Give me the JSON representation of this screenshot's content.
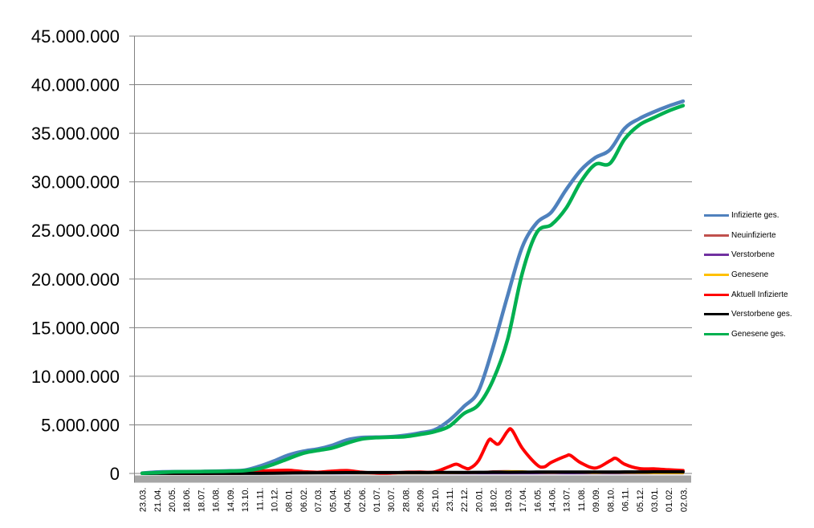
{
  "chart_data": {
    "type": "line",
    "title": "",
    "xlabel": "",
    "ylabel": "",
    "ylim": [
      0,
      45000000
    ],
    "ytick_step": 5000000,
    "ytick_labels": [
      "0",
      "5.000.000",
      "10.000.000",
      "15.000.000",
      "20.000.000",
      "25.000.000",
      "30.000.000",
      "35.000.000",
      "40.000.000",
      "45.000.000"
    ],
    "grid": true,
    "gridline_color": "#808080",
    "axis_color": "#808080",
    "axis_bar_color": "#A6A6A6",
    "legend_position": "right",
    "categories": [
      "23.03.",
      "21.04.",
      "20.05.",
      "18.06.",
      "18.07.",
      "16.08.",
      "14.09.",
      "13.10.",
      "11.11.",
      "10.12.",
      "08.01.",
      "06.02.",
      "07.03.",
      "05.04.",
      "04.05.",
      "02.06.",
      "01.07.",
      "30.07.",
      "28.08.",
      "26.09.",
      "25.10.",
      "23.11.",
      "22.12.",
      "20.01.",
      "18.02.",
      "19.03.",
      "17.04.",
      "16.05.",
      "14.06.",
      "13.07.",
      "11.08.",
      "09.09.",
      "08.10.",
      "06.11.",
      "05.12.",
      "03.01.",
      "01.02.",
      "02.03."
    ],
    "series": [
      {
        "name": "Infizierte ges.",
        "color": "#4F81BD",
        "line_width": 4.5,
        "values": [
          30000,
          145000,
          177000,
          189000,
          201000,
          224000,
          261000,
          334000,
          730000,
          1270000,
          1890000,
          2280000,
          2510000,
          2890000,
          3440000,
          3690000,
          3730000,
          3770000,
          3920000,
          4170000,
          4480000,
          5450000,
          6880000,
          8460000,
          13000000,
          18300000,
          23300000,
          25800000,
          26900000,
          29200000,
          31200000,
          32500000,
          33300000,
          35500000,
          36500000,
          37200000,
          37800000,
          38300000
        ]
      },
      {
        "name": "Neuinfizierte",
        "color": "#C0504D",
        "line_width": 2.5,
        "values": [
          4000,
          2000,
          600,
          400,
          500,
          1200,
          1900,
          5000,
          18000,
          23000,
          25000,
          10000,
          9000,
          18000,
          18000,
          4000,
          800,
          2000,
          9000,
          7500,
          13000,
          45000,
          45000,
          95000,
          220000,
          250000,
          165000,
          60000,
          90000,
          130000,
          60000,
          35000,
          95000,
          45000,
          35000,
          20000,
          15000,
          20000
        ]
      },
      {
        "name": "Verstorbene",
        "color": "#7030A0",
        "line_width": 2.5,
        "values": [
          60,
          220,
          60,
          20,
          10,
          10,
          10,
          30,
          200,
          500,
          900,
          700,
          300,
          200,
          250,
          100,
          70,
          30,
          20,
          60,
          90,
          250,
          450,
          180,
          200,
          250,
          250,
          120,
          100,
          120,
          130,
          100,
          120,
          150,
          180,
          160,
          130,
          120
        ]
      },
      {
        "name": "Genesene",
        "color": "#FFC000",
        "line_width": 2.5,
        "values": [
          500,
          3000,
          1500,
          500,
          450,
          900,
          1500,
          3000,
          12000,
          22000,
          28000,
          18000,
          8000,
          14000,
          22000,
          12000,
          2500,
          1500,
          6500,
          8000,
          10000,
          30000,
          50000,
          60000,
          150000,
          230000,
          230000,
          110000,
          70000,
          110000,
          90000,
          45000,
          75000,
          70000,
          45000,
          28000,
          18000,
          15000
        ]
      },
      {
        "name": "Aktuell Infizierte",
        "color": "#FF0000",
        "line_width": 4,
        "points": [
          [
            0,
            25000
          ],
          [
            1,
            50000
          ],
          [
            2,
            12000
          ],
          [
            3,
            7000
          ],
          [
            4,
            7000
          ],
          [
            5,
            13000
          ],
          [
            6,
            20000
          ],
          [
            7,
            45000
          ],
          [
            8,
            230000
          ],
          [
            9,
            300000
          ],
          [
            10,
            330000
          ],
          [
            11,
            190000
          ],
          [
            12,
            125000
          ],
          [
            13,
            240000
          ],
          [
            14,
            300000
          ],
          [
            15,
            135000
          ],
          [
            16,
            35000
          ],
          [
            17,
            35000
          ],
          [
            18,
            125000
          ],
          [
            19,
            140000
          ],
          [
            20,
            160000
          ],
          [
            21,
            700000
          ],
          [
            21.5,
            950000
          ],
          [
            22,
            620000
          ],
          [
            22.4,
            520000
          ],
          [
            23,
            1300000
          ],
          [
            23.7,
            3400000
          ],
          [
            24,
            3300000
          ],
          [
            24.4,
            3050000
          ],
          [
            25,
            4350000
          ],
          [
            25.3,
            4450000
          ],
          [
            26,
            2600000
          ],
          [
            27,
            900000
          ],
          [
            27.5,
            680000
          ],
          [
            28,
            1150000
          ],
          [
            29,
            1800000
          ],
          [
            29.3,
            1850000
          ],
          [
            30,
            1100000
          ],
          [
            31,
            550000
          ],
          [
            32,
            1300000
          ],
          [
            32.4,
            1550000
          ],
          [
            33,
            950000
          ],
          [
            34,
            500000
          ],
          [
            35,
            470000
          ],
          [
            36,
            380000
          ],
          [
            37,
            300000
          ]
        ]
      },
      {
        "name": "Verstorbene ges.",
        "color": "#000000",
        "line_width": 4,
        "values": [
          200,
          5000,
          8100,
          8900,
          9100,
          9200,
          9350,
          9650,
          12000,
          20500,
          39000,
          61000,
          72000,
          77000,
          83500,
          88500,
          90900,
          91700,
          92200,
          93300,
          95100,
          99400,
          108000,
          116000,
          121000,
          126500,
          132800,
          137200,
          139700,
          142000,
          144800,
          147800,
          150200,
          153000,
          157200,
          161500,
          165800,
          168000
        ]
      },
      {
        "name": "Genesene ges.",
        "color": "#00B050",
        "line_width": 4.5,
        "values": [
          15000,
          85000,
          158000,
          176000,
          190000,
          207000,
          238000,
          285000,
          485000,
          950000,
          1520000,
          2070000,
          2360000,
          2620000,
          3110000,
          3530000,
          3680000,
          3730000,
          3790000,
          4010000,
          4300000,
          4850000,
          6150000,
          7050000,
          9600000,
          13800000,
          20600000,
          24800000,
          25600000,
          27300000,
          30000000,
          31800000,
          31900000,
          34400000,
          35850000,
          36600000,
          37300000,
          37850000
        ]
      }
    ]
  }
}
